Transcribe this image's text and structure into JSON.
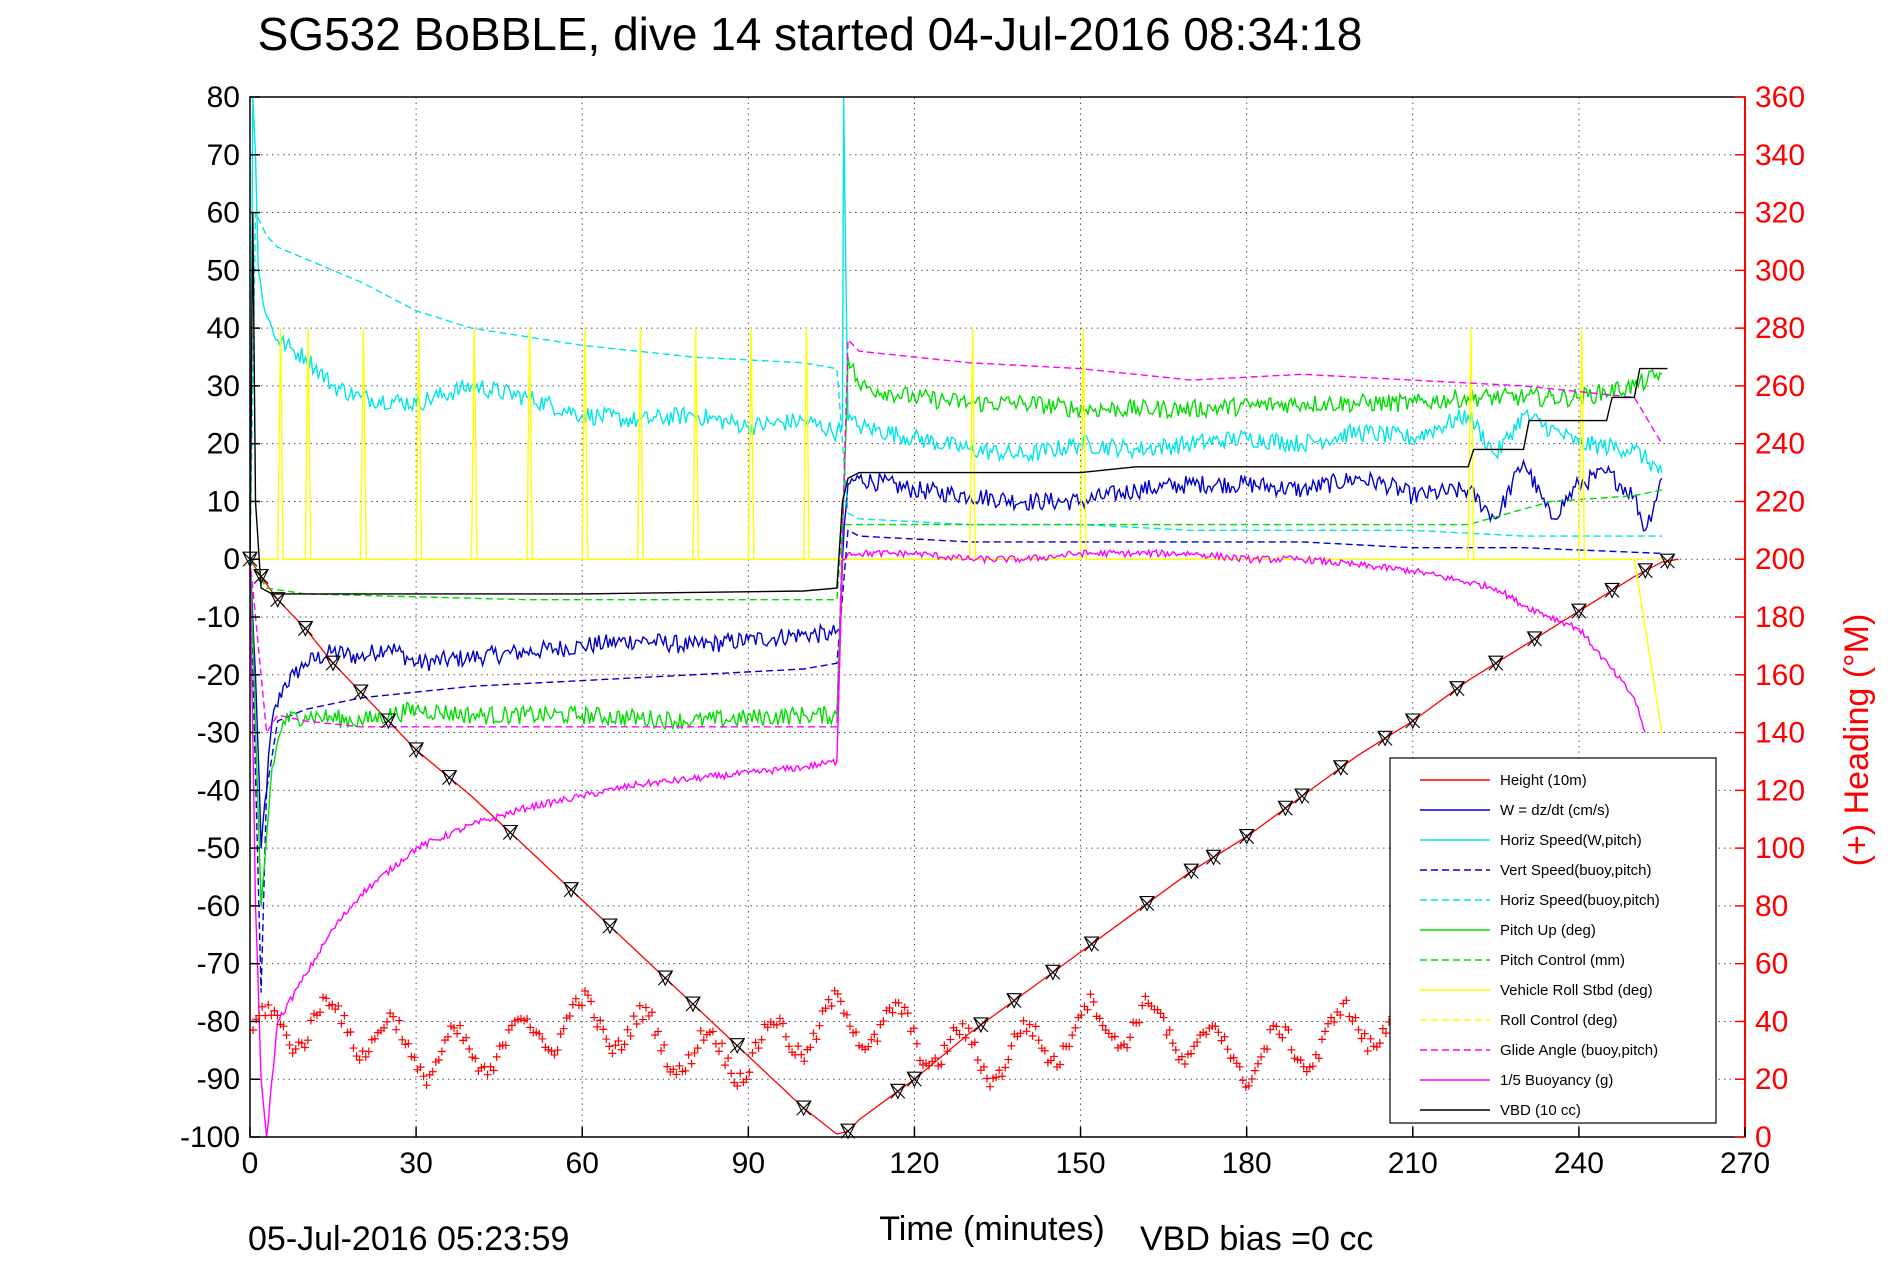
{
  "chart_data": {
    "type": "line",
    "title": "SG532 BoBBLE, dive 14 started 04-Jul-2016 08:34:18",
    "xlabel": "Time (minutes)",
    "ylabel_right": "(+) Heading (°M)",
    "footer_left": "05-Jul-2016 05:23:59",
    "footer_right": "VBD bias =0 cc",
    "xlim": [
      0,
      270
    ],
    "ylim": [
      -100,
      80
    ],
    "y2lim": [
      0,
      360
    ],
    "xticks": [
      "0",
      "30",
      "60",
      "90",
      "120",
      "150",
      "180",
      "210",
      "240",
      "270"
    ],
    "yticks": [
      "80",
      "70",
      "60",
      "50",
      "40",
      "30",
      "20",
      "10",
      "0",
      "-10",
      "-20",
      "-30",
      "-40",
      "-50",
      "-60",
      "-70",
      "-80",
      "-90",
      "-100"
    ],
    "y2ticks": [
      "360",
      "340",
      "320",
      "300",
      "280",
      "260",
      "240",
      "220",
      "200",
      "180",
      "160",
      "140",
      "120",
      "100",
      "80",
      "60",
      "40",
      "20",
      "0"
    ],
    "grid": true,
    "legend_position": "bottom-right",
    "legend": [
      {
        "label": "Height (10m)",
        "color": "#ff0000",
        "dash": "solid"
      },
      {
        "label": "W = dz/dt (cm/s)",
        "color": "#0000cc",
        "dash": "solid"
      },
      {
        "label": "Horiz Speed(W,pitch)",
        "color": "#00e5e5",
        "dash": "solid"
      },
      {
        "label": "Vert Speed(buoy,pitch)",
        "color": "#0000cc",
        "dash": "dashed"
      },
      {
        "label": "Horiz Speed(buoy,pitch)",
        "color": "#00e5e5",
        "dash": "dashed"
      },
      {
        "label": "Pitch Up (deg)",
        "color": "#00dd00",
        "dash": "solid"
      },
      {
        "label": "Pitch Control (mm)",
        "color": "#00dd00",
        "dash": "dashed"
      },
      {
        "label": "Vehicle Roll Stbd (deg)",
        "color": "#ffff00",
        "dash": "solid"
      },
      {
        "label": "Roll Control (deg)",
        "color": "#ffff00",
        "dash": "dashed"
      },
      {
        "label": "Glide Angle (buoy,pitch)",
        "color": "#ff00ff",
        "dash": "dashed"
      },
      {
        "label": "1/5 Buoyancy (g)",
        "color": "#ff00ff",
        "dash": "solid"
      },
      {
        "label": "VBD (10 cc)",
        "color": "#000000",
        "dash": "solid"
      }
    ],
    "series": [
      {
        "key": "height",
        "color": "#ff0000",
        "dash": "solid",
        "x": [
          0,
          2,
          5,
          10,
          15,
          20,
          25,
          30,
          40,
          50,
          60,
          70,
          80,
          90,
          100,
          106,
          108,
          110,
          120,
          130,
          140,
          150,
          160,
          170,
          180,
          190,
          200,
          210,
          220,
          230,
          240,
          250,
          255,
          258
        ],
        "y": [
          0,
          -3,
          -7,
          -12,
          -18,
          -23,
          -28,
          -33,
          -41,
          -50,
          -59,
          -68,
          -77,
          -86,
          -95,
          -99.5,
          -99,
          -97,
          -90,
          -82,
          -75,
          -68,
          -61,
          -54,
          -48,
          -41,
          -34,
          -28,
          -21,
          -15,
          -9,
          -3,
          -0.5,
          0
        ]
      },
      {
        "key": "w",
        "color": "#0000cc",
        "dash": "solid",
        "x": [
          0,
          1,
          2,
          4,
          6,
          8,
          10,
          15,
          20,
          25,
          30,
          40,
          50,
          60,
          70,
          80,
          90,
          100,
          105,
          106.5,
          107,
          108,
          110,
          120,
          130,
          140,
          150,
          160,
          170,
          180,
          190,
          200,
          205,
          210,
          220,
          225,
          230,
          235,
          240,
          245,
          250,
          252,
          255
        ],
        "y": [
          0,
          -20,
          -50,
          -28,
          -22,
          -20,
          -18,
          -16,
          -17,
          -15,
          -18,
          -17,
          -16,
          -15,
          -14,
          -15,
          -14,
          -13,
          -13,
          -12,
          0,
          13,
          14,
          12,
          11,
          10,
          10,
          12,
          13,
          13,
          12,
          14,
          13,
          11,
          12,
          7,
          17,
          7,
          13,
          15,
          11,
          5,
          14
        ]
      },
      {
        "key": "hspd",
        "color": "#00e5e5",
        "dash": "solid",
        "x": [
          0,
          0.5,
          1,
          1.5,
          3,
          5,
          8,
          10,
          15,
          20,
          30,
          40,
          50,
          60,
          70,
          80,
          90,
          100,
          106,
          107,
          107.2,
          108,
          110,
          120,
          130,
          140,
          150,
          160,
          170,
          180,
          190,
          200,
          210,
          220,
          225,
          230,
          240,
          250,
          255
        ],
        "y": [
          0,
          80,
          70,
          50,
          42,
          38,
          36,
          35,
          30,
          28,
          27,
          30,
          28,
          25,
          24,
          25,
          23,
          24,
          22,
          23,
          80,
          24,
          23,
          21,
          19,
          18,
          20,
          19,
          20,
          21,
          20,
          22,
          21,
          25,
          18,
          25,
          20,
          19,
          15
        ]
      },
      {
        "key": "vspd_buoy",
        "color": "#0000cc",
        "dash": "dashed",
        "x": [
          0,
          2,
          3,
          5,
          10,
          20,
          30,
          40,
          60,
          80,
          100,
          106,
          108,
          110,
          130,
          150,
          170,
          190,
          210,
          230,
          255
        ],
        "y": [
          0,
          -75,
          -40,
          -28,
          -26,
          -24,
          -23,
          -22,
          -21,
          -20,
          -19,
          -18,
          5,
          4,
          3,
          3,
          3,
          3,
          2,
          2,
          1
        ]
      },
      {
        "key": "hspd_buoy",
        "color": "#00e5e5",
        "dash": "dashed",
        "x": [
          0,
          1,
          3,
          5,
          10,
          20,
          30,
          40,
          60,
          80,
          100,
          106,
          108,
          110,
          130,
          150,
          170,
          190,
          210,
          230,
          255
        ],
        "y": [
          0,
          60,
          56,
          54,
          52,
          48,
          43,
          40,
          37,
          35,
          34,
          33,
          8,
          7,
          6,
          6,
          5,
          5,
          5,
          4,
          4
        ]
      },
      {
        "key": "pitch",
        "color": "#00dd00",
        "dash": "solid",
        "x": [
          0,
          2,
          4,
          6,
          10,
          20,
          30,
          40,
          60,
          80,
          100,
          106,
          108,
          110,
          120,
          130,
          140,
          150,
          170,
          190,
          210,
          220,
          240,
          250,
          255
        ],
        "y": [
          0,
          -60,
          -36,
          -28,
          -27,
          -28,
          -26,
          -27,
          -27,
          -28,
          -27,
          -27,
          35,
          30,
          28,
          27,
          27,
          26,
          26,
          27,
          27,
          28,
          28,
          30,
          32
        ]
      },
      {
        "key": "pitch_ctrl",
        "color": "#00dd00",
        "dash": "dashed",
        "x": [
          0,
          3,
          10,
          50,
          106,
          107,
          110,
          150,
          200,
          220,
          235,
          250,
          255
        ],
        "y": [
          0,
          -5,
          -6,
          -7,
          -7,
          6,
          6,
          6,
          6,
          6,
          10,
          11,
          12
        ]
      },
      {
        "key": "roll",
        "color": "#ffff00",
        "dash": "solid",
        "x": [
          0,
          5,
          5.5,
          6,
          10,
          10.5,
          11,
          20,
          20.5,
          21,
          30,
          30.5,
          31,
          40,
          40.5,
          41,
          50,
          50.5,
          51,
          60,
          60.5,
          61,
          70,
          70.5,
          71,
          80,
          80.5,
          81,
          90,
          90.5,
          91,
          100,
          100.5,
          101,
          107,
          120,
          130,
          130.5,
          131,
          140,
          150,
          150.5,
          151,
          160,
          170,
          180,
          190,
          200,
          210,
          220,
          220.5,
          221,
          230,
          240,
          240.5,
          241,
          250,
          255
        ],
        "y": [
          0,
          0,
          40,
          0,
          0,
          40,
          0,
          0,
          40,
          0,
          0,
          40,
          0,
          0,
          40,
          0,
          0,
          40,
          0,
          0,
          40,
          0,
          0,
          40,
          0,
          0,
          40,
          0,
          0,
          40,
          0,
          0,
          40,
          0,
          0,
          0,
          0,
          40,
          0,
          0,
          0,
          40,
          0,
          0,
          0,
          0,
          0,
          0,
          0,
          0,
          40,
          0,
          0,
          0,
          40,
          0,
          0,
          -30
        ]
      },
      {
        "key": "roll_ctrl",
        "color": "#ffff00",
        "dash": "dashed",
        "x": [
          0,
          10,
          50,
          100,
          107,
          150,
          200,
          255
        ],
        "y": [
          0,
          0,
          0,
          0,
          0,
          0,
          0,
          0
        ]
      },
      {
        "key": "glide",
        "color": "#ff00ff",
        "dash": "dashed",
        "x": [
          0,
          3,
          5,
          10,
          20,
          30,
          50,
          80,
          100,
          106,
          108,
          110,
          130,
          150,
          170,
          190,
          210,
          230,
          250,
          255
        ],
        "y": [
          0,
          -30,
          -27,
          -28,
          -29,
          -29,
          -29,
          -29,
          -29,
          -29,
          38,
          36,
          34,
          33,
          31,
          32,
          31,
          30,
          28,
          20
        ]
      },
      {
        "key": "buoyancy",
        "color": "#ff00ff",
        "dash": "solid",
        "x": [
          0,
          1,
          2,
          3,
          5,
          10,
          15,
          20,
          30,
          40,
          50,
          60,
          70,
          80,
          90,
          100,
          106,
          107,
          108,
          110,
          120,
          130,
          140,
          150,
          160,
          170,
          180,
          190,
          200,
          210,
          220,
          225,
          230,
          240,
          250,
          252
        ],
        "y": [
          0,
          -60,
          -90,
          -100,
          -80,
          -72,
          -64,
          -58,
          -50,
          -46,
          -43,
          -41,
          -39,
          -38,
          -37,
          -36,
          -35,
          0,
          1,
          1,
          1,
          0,
          0,
          1,
          1,
          1,
          0,
          0,
          -1,
          -2,
          -4,
          -5,
          -8,
          -12,
          -24,
          -30
        ]
      },
      {
        "key": "vbd",
        "color": "#000000",
        "dash": "solid",
        "x": [
          0,
          0.5,
          1,
          2,
          4,
          6,
          30,
          60,
          100,
          106,
          107,
          108,
          110,
          130,
          150,
          160,
          170,
          180,
          200,
          220,
          221,
          230,
          231,
          245,
          246,
          250,
          251,
          256
        ],
        "y": [
          0,
          60,
          10,
          -5,
          -6,
          -6,
          -6,
          -6,
          -5.5,
          -5,
          10,
          14,
          15,
          15,
          15,
          16,
          16,
          16,
          16,
          16,
          19,
          19,
          24,
          24,
          28,
          28,
          33,
          33
        ]
      }
    ],
    "heading_cluster": {
      "x_range": [
        0,
        258
      ],
      "y2_mean": 34,
      "y2_spread": 14
    },
    "height_markers_x": [
      0,
      2,
      5,
      10,
      15,
      20,
      25,
      30,
      36,
      47,
      58,
      65,
      75,
      80,
      88,
      100,
      108,
      117,
      120,
      132,
      138,
      145,
      152,
      162,
      170,
      174,
      180,
      187,
      190,
      197,
      205,
      210,
      218,
      225,
      232,
      240,
      246,
      252,
      256
    ]
  }
}
